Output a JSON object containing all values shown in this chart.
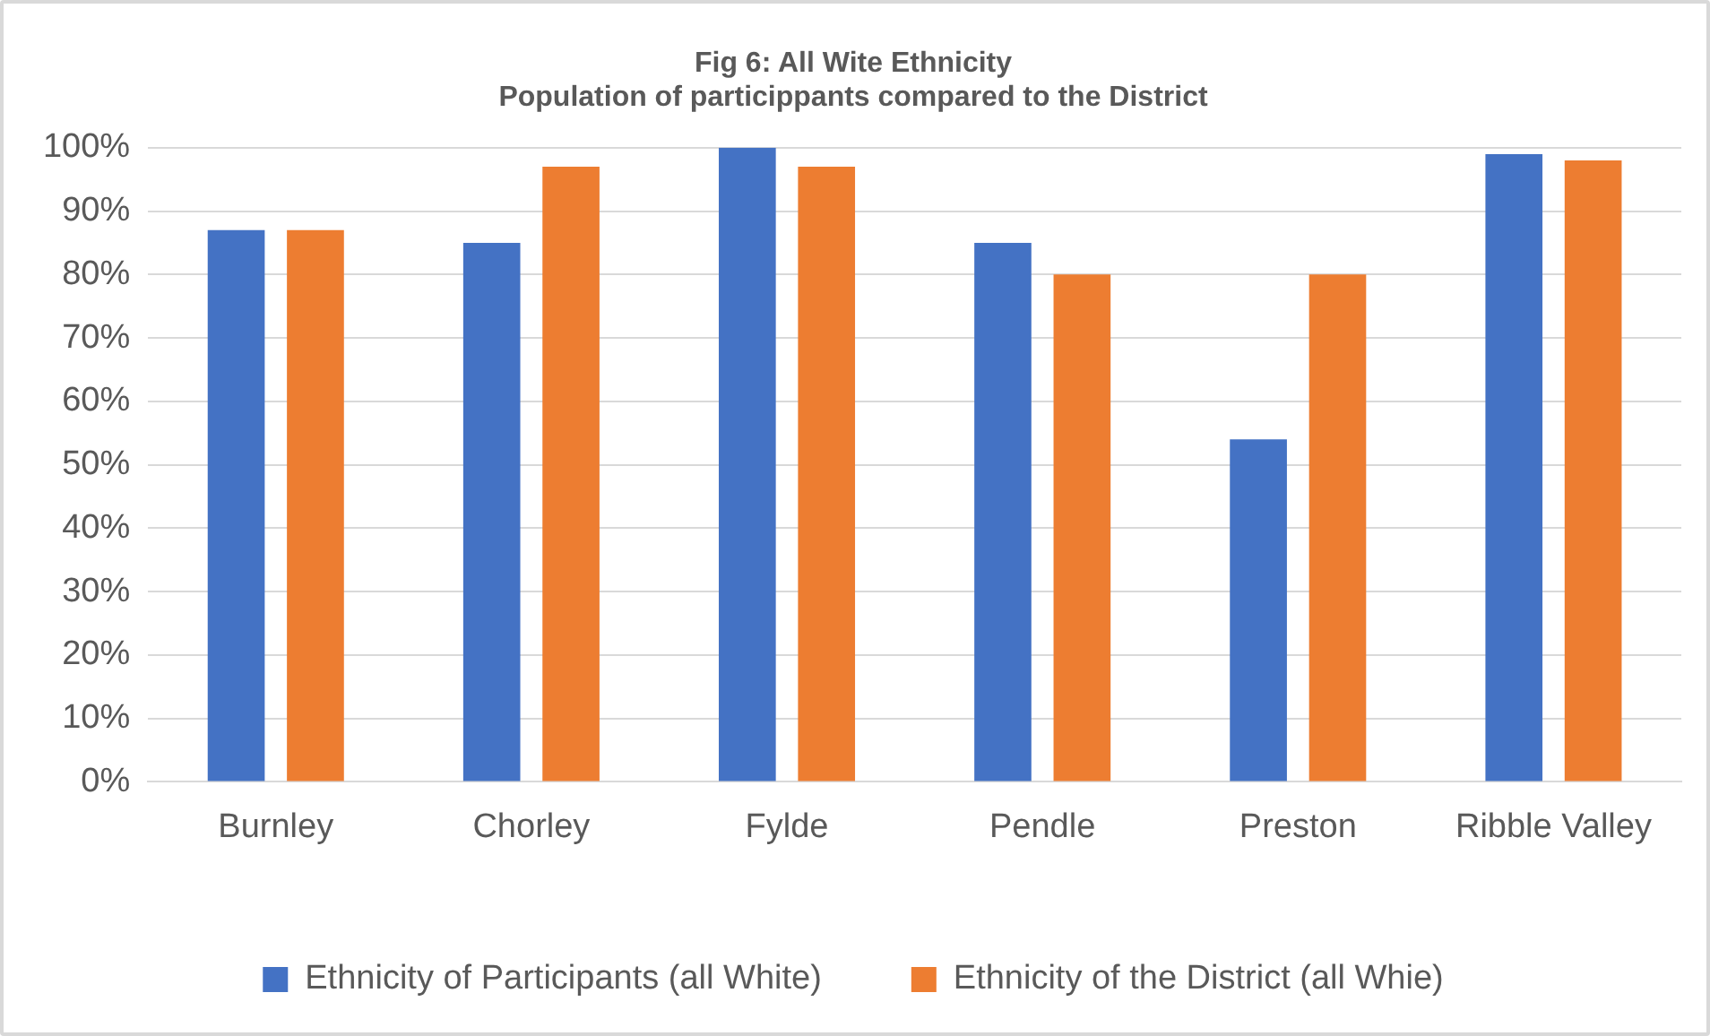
{
  "chart_data": {
    "type": "bar",
    "title": "Fig 6: All Wite Ethnicity",
    "subtitle": "Population of particippants compared to the District",
    "categories": [
      "Burnley",
      "Chorley",
      "Fylde",
      "Pendle",
      "Preston",
      "Ribble Valley"
    ],
    "series": [
      {
        "name": "Ethnicity of Participants (all White)",
        "color": "#4472c4",
        "values": [
          87,
          85,
          100,
          85,
          54,
          99
        ]
      },
      {
        "name": "Ethnicity of the District (all Whie)",
        "color": "#ed7d31",
        "values": [
          87,
          97,
          97,
          80,
          80,
          98
        ]
      }
    ],
    "ylim": [
      0,
      100
    ],
    "yticks": [
      {
        "value": 0,
        "label": "0%"
      },
      {
        "value": 10,
        "label": "10%"
      },
      {
        "value": 20,
        "label": "20%"
      },
      {
        "value": 30,
        "label": "30%"
      },
      {
        "value": 40,
        "label": "40%"
      },
      {
        "value": 50,
        "label": "50%"
      },
      {
        "value": 60,
        "label": "60%"
      },
      {
        "value": 70,
        "label": "70%"
      },
      {
        "value": 80,
        "label": "80%"
      },
      {
        "value": 90,
        "label": "90%"
      },
      {
        "value": 100,
        "label": "100%"
      }
    ],
    "grid": "y",
    "legend": "bottom"
  }
}
